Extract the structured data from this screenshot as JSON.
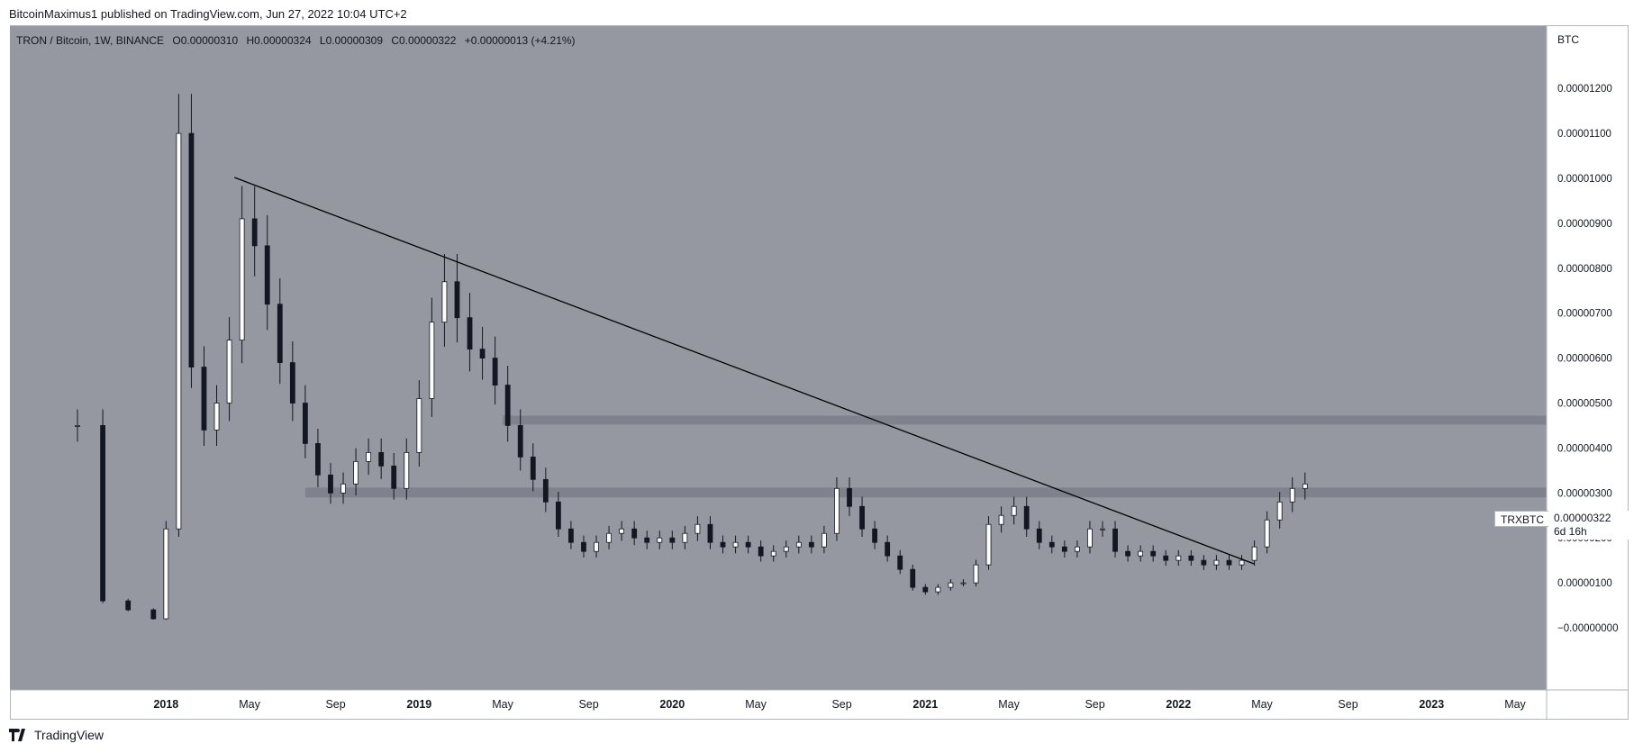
{
  "publisher": "BitcoinMaximus1 published on TradingView.com, Jun 27, 2022 10:04 UTC+2",
  "symbol": {
    "name": "TRON / Bitcoin, 1W, BINANCE",
    "open_label": "O",
    "open": "0.00000310",
    "high_label": "H",
    "high": "0.00000324",
    "low_label": "L",
    "low": "0.00000309",
    "close_label": "C",
    "close": "0.00000322",
    "change": "+0.00000013 (+4.21%)"
  },
  "currency": "BTC",
  "last_price": {
    "ticker": "TRXBTC",
    "price": "0.00000322",
    "countdown": "6d 16h"
  },
  "footer_brand": "TradingView",
  "colors": {
    "background": "#9598a1",
    "candle": "#131722",
    "zone": "#787b86",
    "line": "#000000"
  },
  "chart_data": {
    "type": "candlestick",
    "title": "TRON / Bitcoin, 1W, BINANCE",
    "y_unit": "BTC",
    "ylim": [
      0,
      1.25e-05
    ],
    "y_ticks": [
      "0.00001200",
      "0.00001100",
      "0.00001000",
      "0.00000900",
      "0.00000800",
      "0.00000700",
      "0.00000600",
      "0.00000500",
      "0.00000400",
      "0.00000300",
      "0.00000200",
      "0.00000100",
      "−0.00000000"
    ],
    "y_tick_values": [
      1.2e-05,
      1.1e-05,
      1e-05,
      9e-06,
      8e-06,
      7e-06,
      6e-06,
      5e-06,
      4e-06,
      3e-06,
      2e-06,
      1e-06,
      0
    ],
    "x_ticks": [
      {
        "label": "2018",
        "year": true,
        "t": 2018.0
      },
      {
        "label": "May",
        "year": false,
        "t": 2018.33
      },
      {
        "label": "Sep",
        "year": false,
        "t": 2018.67
      },
      {
        "label": "2019",
        "year": true,
        "t": 2019.0
      },
      {
        "label": "May",
        "year": false,
        "t": 2019.33
      },
      {
        "label": "Sep",
        "year": false,
        "t": 2019.67
      },
      {
        "label": "2020",
        "year": true,
        "t": 2020.0
      },
      {
        "label": "May",
        "year": false,
        "t": 2020.33
      },
      {
        "label": "Sep",
        "year": false,
        "t": 2020.67
      },
      {
        "label": "2021",
        "year": true,
        "t": 2021.0
      },
      {
        "label": "May",
        "year": false,
        "t": 2021.33
      },
      {
        "label": "Sep",
        "year": false,
        "t": 2021.67
      },
      {
        "label": "2022",
        "year": true,
        "t": 2022.0
      },
      {
        "label": "May",
        "year": false,
        "t": 2022.33
      },
      {
        "label": "Sep",
        "year": false,
        "t": 2022.67
      },
      {
        "label": "2023",
        "year": true,
        "t": 2023.0
      },
      {
        "label": "May",
        "year": false,
        "t": 2023.33
      }
    ],
    "x_range": [
      2017.4,
      2023.5
    ],
    "horizontal_zones": [
      {
        "t_start": 2019.33,
        "low": 4.52e-06,
        "high": 4.72e-06
      },
      {
        "t_start": 2018.55,
        "low": 2.9e-06,
        "high": 3.12e-06
      }
    ],
    "trendline": {
      "t1": 2018.27,
      "v1": 1.002e-05,
      "t2": 2022.3,
      "v2": 1.42e-06
    },
    "series": [
      {
        "name": "TRXBTC",
        "points": [
          [
            2017.65,
            4.5e-06
          ],
          [
            2017.75,
            6e-07
          ],
          [
            2017.85,
            4e-07
          ],
          [
            2017.95,
            2e-07
          ],
          [
            2018.0,
            2.2e-06
          ],
          [
            2018.05,
            1.1e-05
          ],
          [
            2018.1,
            5.8e-06
          ],
          [
            2018.15,
            4.4e-06
          ],
          [
            2018.2,
            5e-06
          ],
          [
            2018.25,
            6.4e-06
          ],
          [
            2018.3,
            9.1e-06
          ],
          [
            2018.35,
            8.5e-06
          ],
          [
            2018.4,
            7.2e-06
          ],
          [
            2018.45,
            5.9e-06
          ],
          [
            2018.5,
            5e-06
          ],
          [
            2018.55,
            4.1e-06
          ],
          [
            2018.6,
            3.4e-06
          ],
          [
            2018.65,
            3e-06
          ],
          [
            2018.7,
            3.2e-06
          ],
          [
            2018.75,
            3.7e-06
          ],
          [
            2018.8,
            3.9e-06
          ],
          [
            2018.85,
            3.6e-06
          ],
          [
            2018.9,
            3.1e-06
          ],
          [
            2018.95,
            3.9e-06
          ],
          [
            2019.0,
            5.1e-06
          ],
          [
            2019.05,
            6.8e-06
          ],
          [
            2019.1,
            7.7e-06
          ],
          [
            2019.15,
            6.9e-06
          ],
          [
            2019.2,
            6.2e-06
          ],
          [
            2019.25,
            6e-06
          ],
          [
            2019.3,
            5.4e-06
          ],
          [
            2019.35,
            4.5e-06
          ],
          [
            2019.4,
            3.8e-06
          ],
          [
            2019.45,
            3.3e-06
          ],
          [
            2019.5,
            2.8e-06
          ],
          [
            2019.55,
            2.2e-06
          ],
          [
            2019.6,
            1.9e-06
          ],
          [
            2019.65,
            1.7e-06
          ],
          [
            2019.7,
            1.9e-06
          ],
          [
            2019.75,
            2.1e-06
          ],
          [
            2019.8,
            2.2e-06
          ],
          [
            2019.85,
            2e-06
          ],
          [
            2019.9,
            1.9e-06
          ],
          [
            2019.95,
            2e-06
          ],
          [
            2020.0,
            1.9e-06
          ],
          [
            2020.05,
            2.1e-06
          ],
          [
            2020.1,
            2.3e-06
          ],
          [
            2020.15,
            1.9e-06
          ],
          [
            2020.2,
            1.8e-06
          ],
          [
            2020.25,
            1.9e-06
          ],
          [
            2020.3,
            1.8e-06
          ],
          [
            2020.35,
            1.6e-06
          ],
          [
            2020.4,
            1.7e-06
          ],
          [
            2020.45,
            1.8e-06
          ],
          [
            2020.5,
            1.9e-06
          ],
          [
            2020.55,
            1.8e-06
          ],
          [
            2020.6,
            2.1e-06
          ],
          [
            2020.65,
            3.1e-06
          ],
          [
            2020.7,
            2.7e-06
          ],
          [
            2020.75,
            2.2e-06
          ],
          [
            2020.8,
            1.9e-06
          ],
          [
            2020.85,
            1.6e-06
          ],
          [
            2020.9,
            1.3e-06
          ],
          [
            2020.95,
            9e-07
          ],
          [
            2021.0,
            8e-07
          ],
          [
            2021.05,
            9e-07
          ],
          [
            2021.1,
            1e-06
          ],
          [
            2021.15,
            1e-06
          ],
          [
            2021.2,
            1.4e-06
          ],
          [
            2021.25,
            2.3e-06
          ],
          [
            2021.3,
            2.5e-06
          ],
          [
            2021.35,
            2.7e-06
          ],
          [
            2021.4,
            2.2e-06
          ],
          [
            2021.45,
            1.9e-06
          ],
          [
            2021.5,
            1.8e-06
          ],
          [
            2021.55,
            1.7e-06
          ],
          [
            2021.6,
            1.8e-06
          ],
          [
            2021.65,
            2.2e-06
          ],
          [
            2021.7,
            2.2e-06
          ],
          [
            2021.75,
            1.7e-06
          ],
          [
            2021.8,
            1.6e-06
          ],
          [
            2021.85,
            1.7e-06
          ],
          [
            2021.9,
            1.6e-06
          ],
          [
            2021.95,
            1.5e-06
          ],
          [
            2022.0,
            1.6e-06
          ],
          [
            2022.05,
            1.5e-06
          ],
          [
            2022.1,
            1.4e-06
          ],
          [
            2022.15,
            1.5e-06
          ],
          [
            2022.2,
            1.4e-06
          ],
          [
            2022.25,
            1.5e-06
          ],
          [
            2022.3,
            1.8e-06
          ],
          [
            2022.35,
            2.4e-06
          ],
          [
            2022.4,
            2.8e-06
          ],
          [
            2022.45,
            3.1e-06
          ],
          [
            2022.5,
            3.2e-06
          ]
        ]
      }
    ]
  }
}
